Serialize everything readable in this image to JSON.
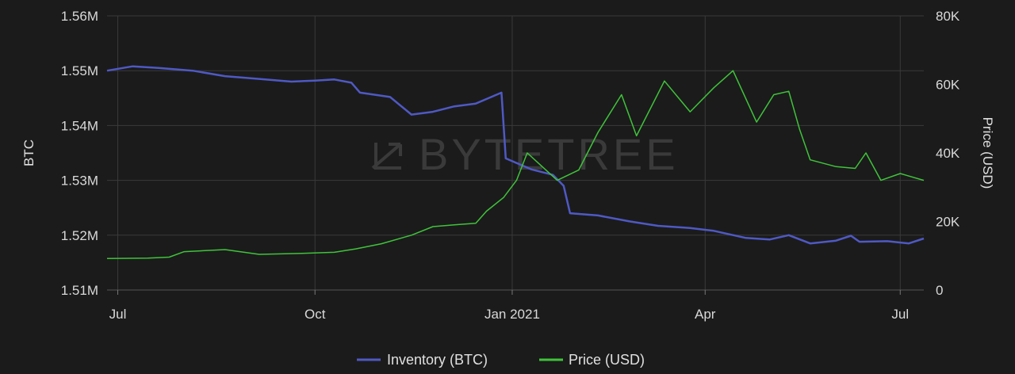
{
  "chart_data": {
    "type": "line",
    "title": "",
    "watermark": "BYTETREE",
    "y_left": {
      "label": "BTC",
      "min": 1510000,
      "max": 1560000,
      "ticks": [
        {
          "value": 1510000,
          "label": "1.51M"
        },
        {
          "value": 1520000,
          "label": "1.52M"
        },
        {
          "value": 1530000,
          "label": "1.53M"
        },
        {
          "value": 1540000,
          "label": "1.54M"
        },
        {
          "value": 1550000,
          "label": "1.55M"
        },
        {
          "value": 1560000,
          "label": "1.56M"
        }
      ]
    },
    "y_right": {
      "label": "Price (USD)",
      "min": 0,
      "max": 80000,
      "ticks": [
        {
          "value": 0,
          "label": "0"
        },
        {
          "value": 20000,
          "label": "20K"
        },
        {
          "value": 40000,
          "label": "40K"
        },
        {
          "value": 60000,
          "label": "60K"
        },
        {
          "value": 80000,
          "label": "80K"
        }
      ]
    },
    "x_axis": {
      "min": "2020-06-26",
      "max": "2021-07-12",
      "ticks": [
        {
          "date": "2020-07-01",
          "label": "Jul"
        },
        {
          "date": "2020-10-01",
          "label": "Oct"
        },
        {
          "date": "2021-01-01",
          "label": "Jan 2021"
        },
        {
          "date": "2021-04-01",
          "label": "Apr"
        },
        {
          "date": "2021-07-01",
          "label": "Jul"
        }
      ]
    },
    "grid": true,
    "legend": {
      "position": "bottom-center"
    },
    "series": [
      {
        "name": "Inventory (BTC)",
        "axis": "left",
        "color": "#4f59c4",
        "points": [
          [
            "2020-06-26",
            1550000
          ],
          [
            "2020-07-08",
            1550800
          ],
          [
            "2020-07-20",
            1550500
          ],
          [
            "2020-08-05",
            1550000
          ],
          [
            "2020-08-20",
            1549000
          ],
          [
            "2020-09-05",
            1548500
          ],
          [
            "2020-09-20",
            1548000
          ],
          [
            "2020-10-01",
            1548200
          ],
          [
            "2020-10-10",
            1548400
          ],
          [
            "2020-10-18",
            1547800
          ],
          [
            "2020-10-22",
            1546000
          ],
          [
            "2020-11-05",
            1545200
          ],
          [
            "2020-11-15",
            1542000
          ],
          [
            "2020-11-25",
            1542500
          ],
          [
            "2020-12-05",
            1543500
          ],
          [
            "2020-12-15",
            1544000
          ],
          [
            "2020-12-27",
            1546000
          ],
          [
            "2020-12-29",
            1534000
          ],
          [
            "2021-01-10",
            1532000
          ],
          [
            "2021-01-20",
            1531000
          ],
          [
            "2021-01-25",
            1529000
          ],
          [
            "2021-01-28",
            1524000
          ],
          [
            "2021-02-10",
            1523600
          ],
          [
            "2021-02-25",
            1522500
          ],
          [
            "2021-03-10",
            1521700
          ],
          [
            "2021-03-25",
            1521300
          ],
          [
            "2021-04-05",
            1520800
          ],
          [
            "2021-04-20",
            1519500
          ],
          [
            "2021-05-01",
            1519200
          ],
          [
            "2021-05-10",
            1520000
          ],
          [
            "2021-05-20",
            1518500
          ],
          [
            "2021-06-01",
            1519000
          ],
          [
            "2021-06-08",
            1519900
          ],
          [
            "2021-06-12",
            1518800
          ],
          [
            "2021-06-25",
            1518900
          ],
          [
            "2021-07-05",
            1518500
          ],
          [
            "2021-07-12",
            1519400
          ]
        ]
      },
      {
        "name": "Price (USD)",
        "axis": "right",
        "color": "#3fc43a",
        "points": [
          [
            "2020-06-26",
            9200
          ],
          [
            "2020-07-15",
            9300
          ],
          [
            "2020-07-25",
            9600
          ],
          [
            "2020-08-01",
            11200
          ],
          [
            "2020-08-20",
            11800
          ],
          [
            "2020-09-05",
            10400
          ],
          [
            "2020-09-25",
            10700
          ],
          [
            "2020-10-10",
            11000
          ],
          [
            "2020-10-20",
            12000
          ],
          [
            "2020-11-01",
            13500
          ],
          [
            "2020-11-15",
            16000
          ],
          [
            "2020-11-25",
            18500
          ],
          [
            "2020-12-05",
            19000
          ],
          [
            "2020-12-15",
            19500
          ],
          [
            "2020-12-20",
            23000
          ],
          [
            "2020-12-28",
            27000
          ],
          [
            "2021-01-03",
            32000
          ],
          [
            "2021-01-08",
            40000
          ],
          [
            "2021-01-15",
            36000
          ],
          [
            "2021-01-22",
            32000
          ],
          [
            "2021-02-01",
            35000
          ],
          [
            "2021-02-10",
            46000
          ],
          [
            "2021-02-21",
            57000
          ],
          [
            "2021-02-28",
            45000
          ],
          [
            "2021-03-13",
            61000
          ],
          [
            "2021-03-25",
            52000
          ],
          [
            "2021-04-05",
            59000
          ],
          [
            "2021-04-14",
            64000
          ],
          [
            "2021-04-25",
            49000
          ],
          [
            "2021-05-03",
            57000
          ],
          [
            "2021-05-10",
            58000
          ],
          [
            "2021-05-15",
            47000
          ],
          [
            "2021-05-20",
            38000
          ],
          [
            "2021-06-01",
            36000
          ],
          [
            "2021-06-10",
            35500
          ],
          [
            "2021-06-15",
            40000
          ],
          [
            "2021-06-22",
            32000
          ],
          [
            "2021-07-01",
            34000
          ],
          [
            "2021-07-12",
            32000
          ]
        ]
      }
    ]
  }
}
